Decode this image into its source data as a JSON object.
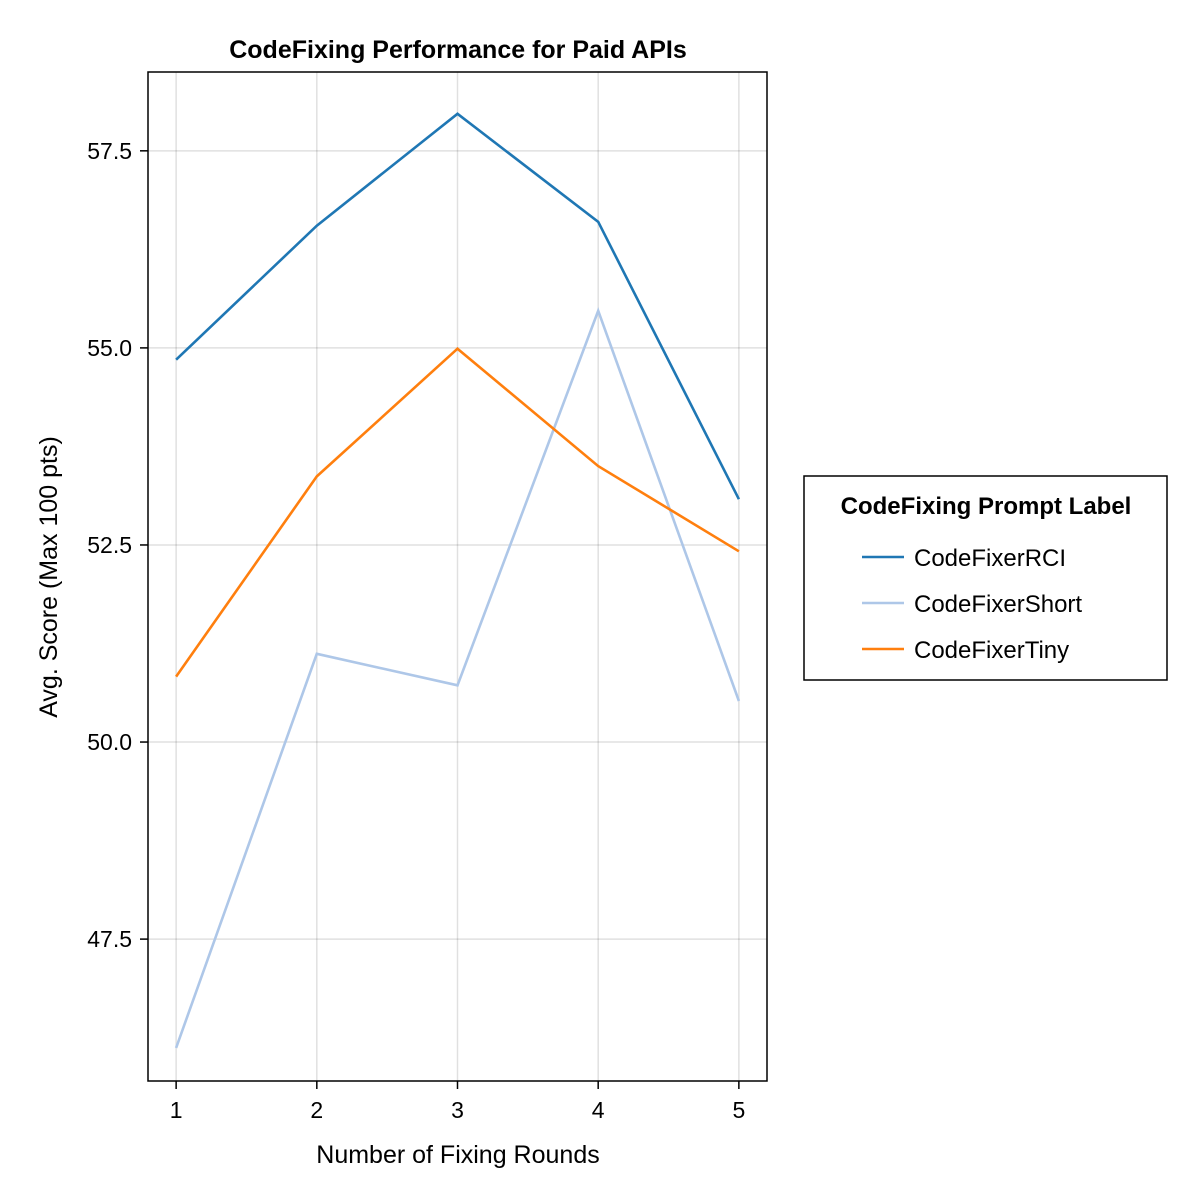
{
  "chart_data": {
    "type": "line",
    "title": "CodeFixing Performance for Paid APIs",
    "xlabel": "Number of Fixing Rounds",
    "ylabel": "Avg. Score (Max 100 pts)",
    "x": [
      1,
      2,
      3,
      4,
      5
    ],
    "xticks": [
      "1",
      "2",
      "3",
      "4",
      "5"
    ],
    "yticks": [
      47.5,
      50.0,
      52.5,
      55.0,
      57.5
    ],
    "ytick_labels": [
      "47.5",
      "50.0",
      "52.5",
      "55.0",
      "57.5"
    ],
    "xlim": [
      0.8,
      5.2
    ],
    "ylim": [
      45.7,
      58.5
    ],
    "grid": true,
    "legend": {
      "title": "CodeFixing Prompt Label",
      "placement": "right"
    },
    "series": [
      {
        "name": "CodeFixerRCI",
        "color": "#1f77b4",
        "values": [
          54.85,
          56.55,
          57.97,
          56.6,
          53.08
        ]
      },
      {
        "name": "CodeFixerShort",
        "color": "#aec7e8",
        "values": [
          46.12,
          51.12,
          50.72,
          55.47,
          50.52
        ]
      },
      {
        "name": "CodeFixerTiny",
        "color": "#ff7f0e",
        "values": [
          50.83,
          53.37,
          54.99,
          53.5,
          52.42
        ]
      }
    ]
  }
}
